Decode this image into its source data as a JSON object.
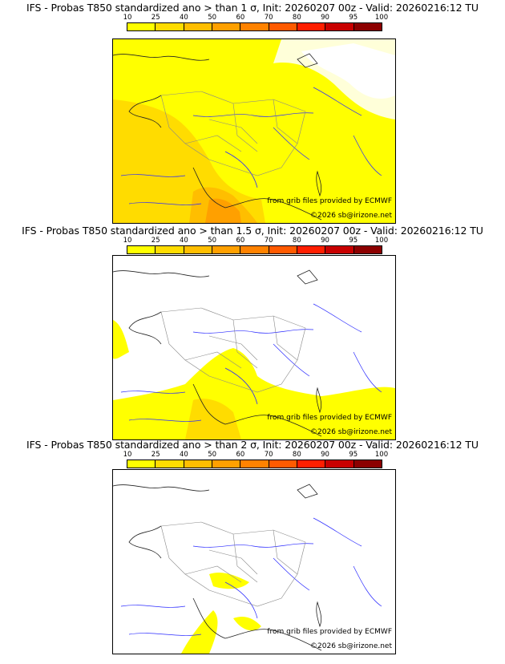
{
  "colorbar": {
    "ticks": [
      "10",
      "25",
      "40",
      "50",
      "60",
      "70",
      "80",
      "90",
      "95",
      "100"
    ],
    "colors": [
      "#ffff00",
      "#ffdc00",
      "#ffbe00",
      "#ffa000",
      "#ff8200",
      "#ff5a00",
      "#ff1e00",
      "#c80000",
      "#8c0000"
    ]
  },
  "panels": [
    {
      "title": "IFS - Probas T850  standardized ano > than 1 σ, Init: 20260207 00z - Valid: 20260216:12 TU"
    },
    {
      "title": "IFS - Probas T850  standardized ano > than 1.5 σ, Init: 20260207 00z - Valid: 20260216:12 TU"
    },
    {
      "title": "IFS - Probas T850  standardized ano > than 2 σ, Init: 20260207 00z - Valid: 20260216:12 TU"
    }
  ],
  "credits": {
    "source": "from grib files provided by ECMWF",
    "copyright": "©2026 sb@irizone.net"
  }
}
